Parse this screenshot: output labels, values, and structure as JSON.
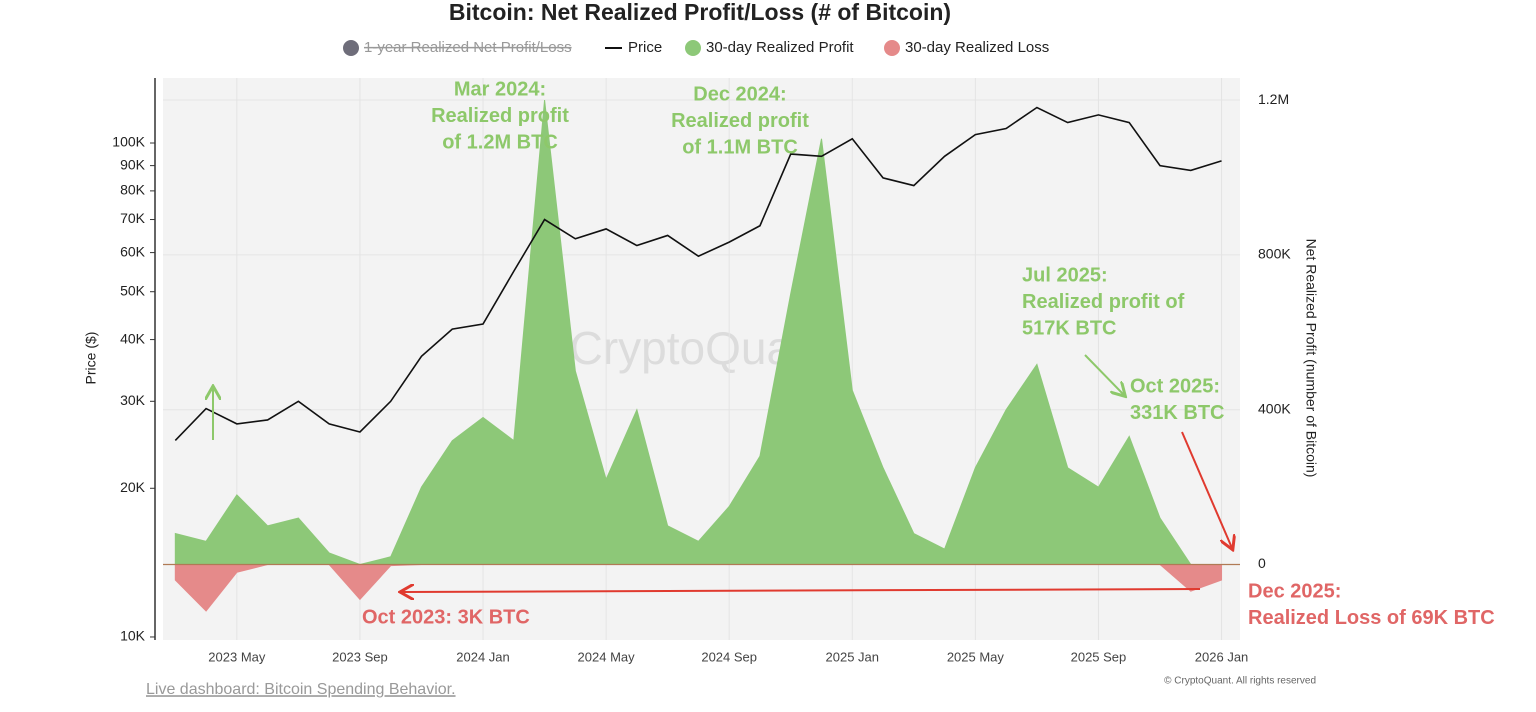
{
  "chart_data": {
    "type": "line",
    "title": "Bitcoin: Net Realized Profit/Loss (# of Bitcoin)",
    "y_label": "Price ($)",
    "y2_label": "Net Realized Profit (number of Bitcoin)",
    "watermark": "CryptoQuant",
    "x": [
      "2023 Mar",
      "2023 Apr",
      "2023 May",
      "2023 Jun",
      "2023 Jul",
      "2023 Aug",
      "2023 Sep",
      "2023 Oct",
      "2023 Nov",
      "2023 Dec",
      "2024 Jan",
      "2024 Feb",
      "2024 Mar",
      "2024 Apr",
      "2024 May",
      "2024 Jun",
      "2024 Jul",
      "2024 Aug",
      "2024 Sep",
      "2024 Oct",
      "2024 Nov",
      "2024 Dec",
      "2025 Jan",
      "2025 Feb",
      "2025 Mar",
      "2025 Apr",
      "2025 May",
      "2025 Jun",
      "2025 Jul",
      "2025 Aug",
      "2025 Sep",
      "2025 Oct",
      "2025 Nov",
      "2025 Dec",
      "2026 Jan"
    ],
    "xticks": [
      "2023 May",
      "2023 Sep",
      "2024 Jan",
      "2024 May",
      "2024 Sep",
      "2025 Jan",
      "2025 May",
      "2025 Sep",
      "2026 Jan"
    ],
    "yscale": "log",
    "ylim": [
      9860,
      135400
    ],
    "yticks": [
      {
        "value": 10000,
        "label": "10K"
      },
      {
        "value": 20000,
        "label": "20K"
      },
      {
        "value": 30000,
        "label": "30K"
      },
      {
        "value": 40000,
        "label": "40K"
      },
      {
        "value": 50000,
        "label": "50K"
      },
      {
        "value": 60000,
        "label": "60K"
      },
      {
        "value": 70000,
        "label": "70K"
      },
      {
        "value": 80000,
        "label": "80K"
      },
      {
        "value": 90000,
        "label": "90K"
      },
      {
        "value": 100000,
        "label": "100K"
      }
    ],
    "y2lim": [
      -195000,
      1257000
    ],
    "y2ticks": [
      0,
      {
        "value": 400000,
        "label": "400K"
      },
      {
        "value": 800000,
        "label": "800K"
      },
      {
        "value": 1200000,
        "label": "1.2M"
      }
    ],
    "grid": true,
    "series": [
      {
        "name": "1-year Realized Net Profit/Loss",
        "color": "#6e6d7a",
        "hidden": true
      },
      {
        "name": "Price",
        "color": "#111111",
        "type": "line",
        "values": [
          25000,
          29000,
          27000,
          27500,
          30000,
          27000,
          26000,
          30000,
          37000,
          42000,
          43000,
          55000,
          70000,
          64000,
          67000,
          62000,
          65000,
          59000,
          63000,
          68000,
          95000,
          94000,
          102000,
          85000,
          82000,
          94000,
          104000,
          107000,
          118000,
          110000,
          114000,
          110000,
          90000,
          88000,
          92000
        ]
      },
      {
        "name": "30-day Realized Profit",
        "color": "#8dc878",
        "type": "area",
        "axis": "y2",
        "values": [
          80000,
          60000,
          180000,
          100000,
          120000,
          30000,
          0,
          20000,
          200000,
          320000,
          380000,
          320000,
          1200000,
          500000,
          220000,
          400000,
          100000,
          60000,
          150000,
          280000,
          700000,
          1100000,
          450000,
          250000,
          80000,
          40000,
          250000,
          400000,
          517000,
          250000,
          200000,
          331000,
          120000,
          0,
          0
        ]
      },
      {
        "name": "30-day Realized Loss",
        "color": "#e58a8a",
        "type": "area",
        "axis": "y2",
        "values": [
          -40000,
          -120000,
          -20000,
          0,
          0,
          0,
          -90000,
          -3000,
          0,
          0,
          0,
          0,
          0,
          0,
          0,
          0,
          0,
          0,
          0,
          0,
          0,
          0,
          0,
          0,
          0,
          0,
          0,
          0,
          0,
          0,
          0,
          0,
          0,
          -69000,
          -40000
        ]
      }
    ],
    "annotations": [
      {
        "lines": [
          "Mar 2024:",
          "Realized profit",
          "of 1.2M BTC"
        ],
        "color": "#8dc86a"
      },
      {
        "lines": [
          "Dec 2024:",
          "Realized profit",
          "of 1.1M BTC"
        ],
        "color": "#8dc86a"
      },
      {
        "lines": [
          "Jul 2025:",
          "Realized profit of",
          "517K BTC"
        ],
        "color": "#8dc86a"
      },
      {
        "lines": [
          "Oct 2025:",
          "331K BTC"
        ],
        "color": "#8dc86a"
      },
      {
        "lines": [
          "Oct 2023: 3K BTC"
        ],
        "color": "#e06666"
      },
      {
        "lines": [
          "Dec 2025:",
          "Realized Loss of 69K BTC"
        ],
        "color": "#e06666"
      }
    ]
  },
  "footer": {
    "link": "Live dashboard: Bitcoin Spending Behavior.",
    "copyright": "© CryptoQuant. All rights reserved"
  }
}
